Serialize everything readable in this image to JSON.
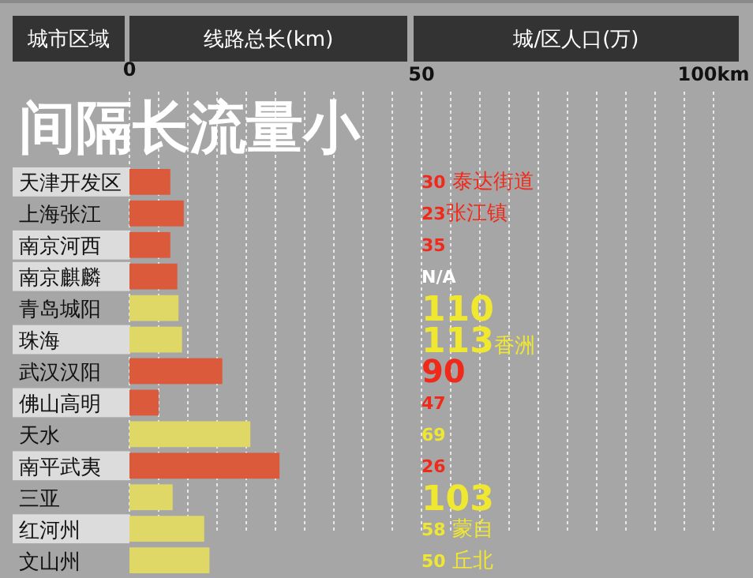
{
  "chart_data": {
    "type": "bar",
    "orientation": "horizontal",
    "title": "间隔长流量小",
    "ylabel": "城市区域",
    "xlabel": "线路总长(km)",
    "categories": [
      "天津开发区",
      "上海张江",
      "南京河西",
      "南京麒麟",
      "青岛城阳",
      "珠海",
      "武汉汉阳",
      "佛山高明",
      "天水",
      "南平武夷",
      "三亚",
      "红河州",
      "文山州"
    ],
    "values": [
      7.0,
      9.3,
      7.0,
      8.2,
      8.4,
      9.0,
      15.9,
      5.0,
      20.7,
      25.7,
      7.4,
      12.8,
      13.7
    ],
    "colors": [
      "#dc5a3c",
      "#dc5a3c",
      "#dc5a3c",
      "#dc5a3c",
      "#e0d866",
      "#e0d866",
      "#dc5a3c",
      "#dc5a3c",
      "#e0d866",
      "#dc5a3c",
      "#e0d866",
      "#e0d866",
      "#e0d866"
    ],
    "xlim": [
      0,
      100
    ],
    "xticks": [
      0,
      {
        "value": 5,
        "label": null
      },
      {
        "value": 10,
        "label": null
      },
      {
        "value": 15,
        "label": null
      },
      {
        "value": 20,
        "label": null
      },
      {
        "value": 25,
        "label": null
      },
      {
        "value": 30,
        "label": null
      },
      {
        "value": 35,
        "label": null
      },
      {
        "value": 40,
        "label": null
      },
      {
        "value": 45,
        "label": null
      },
      50,
      {
        "value": 55,
        "label": null
      },
      {
        "value": 60,
        "label": null
      },
      {
        "value": 65,
        "label": null
      },
      {
        "value": 70,
        "label": null
      },
      {
        "value": 75,
        "label": null
      },
      {
        "value": 80,
        "label": null
      },
      {
        "value": 85,
        "label": null
      },
      {
        "value": 90,
        "label": null
      },
      {
        "value": 95,
        "label": null
      },
      {
        "value": 100,
        "label": "100km"
      }
    ],
    "grid": "x",
    "annotations": [
      "城/区人口(万)",
      "30 泰达街道",
      "23张江镇",
      "35",
      "N/A",
      "110",
      "113香洲",
      "90",
      "47",
      "69",
      "26",
      "103",
      "58 蒙自",
      "50 丘北"
    ]
  }
}
